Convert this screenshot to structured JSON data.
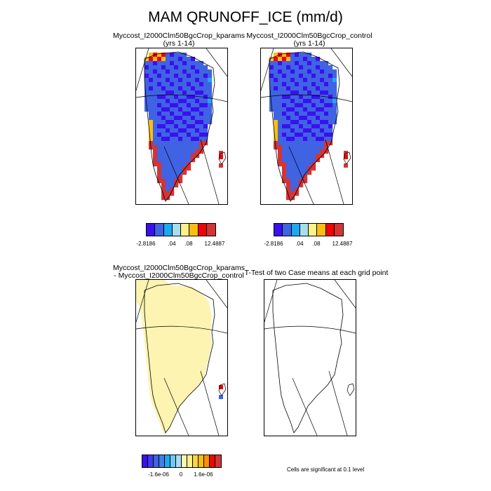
{
  "title": "MAM QRUNOFF_ICE (mm/d)",
  "panels": {
    "top_left": {
      "title": "Myccost_I2000Clm50BgcCrop_kparams",
      "subtitle": "(yrs 1-14)"
    },
    "top_right": {
      "title": "Myccost_I2000Clm50BgcCrop_control",
      "subtitle": "(yrs 1-14)"
    },
    "bottom_left": {
      "title": "Myccost_I2000Clm50BgcCrop_kparams",
      "subtitle": "- Myccost_I2000Clm50BgcCrop_control"
    },
    "bottom_right": {
      "title": "T-Test of two Case means at each grid point"
    }
  },
  "colorbar_top": {
    "colors": [
      "#3a10ef",
      "#3f63e3",
      "#1fa8f0",
      "#a7ddef",
      "#fcf18a",
      "#fbbd12",
      "#ee0505",
      "#d33434"
    ],
    "labels": [
      "-2.8186",
      ".04",
      ".08",
      "12.4887"
    ]
  },
  "colorbar_bottom": {
    "colors": [
      "#3a10ef",
      "#3f3aef",
      "#3f63e3",
      "#3f7fe6",
      "#1fa8f0",
      "#6ec8f3",
      "#a7ddef",
      "#fcf4b0",
      "#fcf18a",
      "#fbd640",
      "#fbbd12",
      "#f9900c",
      "#ee0505",
      "#d33434"
    ],
    "labels": [
      "-1.6e-06",
      "0",
      "1.6e-06"
    ]
  },
  "significance_note": "Cells are significant at 0.1 level",
  "map_colors": {
    "deep_blue": "#3a10ef",
    "blue": "#3f63e3",
    "light_blue": "#1fa8f0",
    "pale_blue": "#a7ddef",
    "yellow": "#fcf18a",
    "orange": "#fbbd12",
    "red": "#ee0505",
    "dark_red": "#d33434",
    "diff_fill": "#fcf4b0"
  }
}
